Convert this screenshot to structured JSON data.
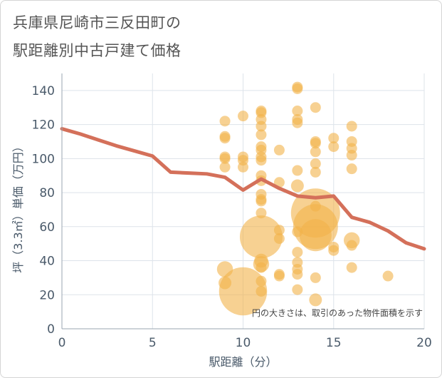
{
  "title_line1": "兵庫県尼崎市三反田町の",
  "title_line2": "駅距離別中古戸建て価格",
  "chart_data": {
    "type": "scatter",
    "xlabel": "駅距離（分）",
    "ylabel": "坪（3.3㎡）単価（万円）",
    "xlim": [
      0,
      20
    ],
    "ylim": [
      0,
      150
    ],
    "xticks": [
      "0",
      "5",
      "10",
      "15",
      "20"
    ],
    "yticks": [
      "0",
      "20",
      "40",
      "60",
      "80",
      "100",
      "120",
      "140"
    ],
    "xtick_values": [
      0,
      5,
      10,
      15,
      20
    ],
    "ytick_values": [
      0,
      20,
      40,
      60,
      80,
      100,
      120,
      140
    ],
    "grid": true,
    "note": "円の大きさは、取引のあった物件面積を示す",
    "colors": {
      "bubble": "#f2b34a",
      "line": "#d4705a",
      "grid": "#dde3ea",
      "axis": "#9aa6b2"
    },
    "scatter": [
      {
        "x": 9,
        "y": 122,
        "s": 1
      },
      {
        "x": 9,
        "y": 113,
        "s": 1
      },
      {
        "x": 9,
        "y": 112,
        "s": 1
      },
      {
        "x": 9,
        "y": 101,
        "s": 1
      },
      {
        "x": 9,
        "y": 100,
        "s": 1
      },
      {
        "x": 9,
        "y": 95,
        "s": 1
      },
      {
        "x": 9,
        "y": 35,
        "s": 1.5
      },
      {
        "x": 9,
        "y": 27,
        "s": 1.2
      },
      {
        "x": 10,
        "y": 125,
        "s": 1
      },
      {
        "x": 10,
        "y": 101,
        "s": 1
      },
      {
        "x": 10,
        "y": 99,
        "s": 1
      },
      {
        "x": 10,
        "y": 95,
        "s": 1
      },
      {
        "x": 10,
        "y": 22,
        "s": 4.5
      },
      {
        "x": 11,
        "y": 128,
        "s": 1
      },
      {
        "x": 11,
        "y": 127,
        "s": 1
      },
      {
        "x": 11,
        "y": 123,
        "s": 1
      },
      {
        "x": 11,
        "y": 119,
        "s": 1
      },
      {
        "x": 11,
        "y": 114,
        "s": 1
      },
      {
        "x": 11,
        "y": 107,
        "s": 1
      },
      {
        "x": 11,
        "y": 105,
        "s": 1
      },
      {
        "x": 11,
        "y": 101,
        "s": 1
      },
      {
        "x": 11,
        "y": 99,
        "s": 1
      },
      {
        "x": 11,
        "y": 90,
        "s": 1
      },
      {
        "x": 11,
        "y": 87,
        "s": 1
      },
      {
        "x": 11,
        "y": 79,
        "s": 1
      },
      {
        "x": 11,
        "y": 76,
        "s": 1
      },
      {
        "x": 11,
        "y": 75,
        "s": 1
      },
      {
        "x": 11,
        "y": 68,
        "s": 1
      },
      {
        "x": 11,
        "y": 54,
        "s": 4
      },
      {
        "x": 11,
        "y": 40,
        "s": 1.3
      },
      {
        "x": 11,
        "y": 38,
        "s": 1.5
      },
      {
        "x": 11,
        "y": 36,
        "s": 1
      },
      {
        "x": 11,
        "y": 28,
        "s": 1
      },
      {
        "x": 11,
        "y": 22,
        "s": 1
      },
      {
        "x": 12,
        "y": 105,
        "s": 1
      },
      {
        "x": 12,
        "y": 86,
        "s": 1
      },
      {
        "x": 12,
        "y": 58,
        "s": 1
      },
      {
        "x": 12,
        "y": 53,
        "s": 1
      },
      {
        "x": 12,
        "y": 32,
        "s": 1
      },
      {
        "x": 12,
        "y": 31,
        "s": 1
      },
      {
        "x": 13,
        "y": 142,
        "s": 1
      },
      {
        "x": 13,
        "y": 141,
        "s": 1
      },
      {
        "x": 13,
        "y": 128,
        "s": 1
      },
      {
        "x": 13,
        "y": 123,
        "s": 1
      },
      {
        "x": 13,
        "y": 121,
        "s": 1
      },
      {
        "x": 13,
        "y": 93,
        "s": 1
      },
      {
        "x": 13,
        "y": 84,
        "s": 1.2
      },
      {
        "x": 13,
        "y": 57,
        "s": 1
      },
      {
        "x": 13,
        "y": 45,
        "s": 1
      },
      {
        "x": 13,
        "y": 39,
        "s": 1
      },
      {
        "x": 13,
        "y": 35,
        "s": 1
      },
      {
        "x": 13,
        "y": 32,
        "s": 1
      },
      {
        "x": 13,
        "y": 23,
        "s": 1
      },
      {
        "x": 14,
        "y": 130,
        "s": 1
      },
      {
        "x": 14,
        "y": 110,
        "s": 1
      },
      {
        "x": 14,
        "y": 109,
        "s": 1
      },
      {
        "x": 14,
        "y": 104,
        "s": 1
      },
      {
        "x": 14,
        "y": 97,
        "s": 1
      },
      {
        "x": 14,
        "y": 92,
        "s": 1
      },
      {
        "x": 14,
        "y": 72,
        "s": 1
      },
      {
        "x": 14,
        "y": 68,
        "s": 4.6
      },
      {
        "x": 14,
        "y": 60,
        "s": 4.2
      },
      {
        "x": 14,
        "y": 55,
        "s": 3
      },
      {
        "x": 14,
        "y": 30,
        "s": 1
      },
      {
        "x": 14,
        "y": 17,
        "s": 1.2
      },
      {
        "x": 15,
        "y": 112,
        "s": 1
      },
      {
        "x": 15,
        "y": 107,
        "s": 1
      },
      {
        "x": 15,
        "y": 48,
        "s": 1
      },
      {
        "x": 15,
        "y": 46,
        "s": 1
      },
      {
        "x": 16,
        "y": 119,
        "s": 1
      },
      {
        "x": 16,
        "y": 110,
        "s": 1
      },
      {
        "x": 16,
        "y": 106,
        "s": 1
      },
      {
        "x": 16,
        "y": 102,
        "s": 1
      },
      {
        "x": 16,
        "y": 94,
        "s": 1
      },
      {
        "x": 16,
        "y": 52,
        "s": 1.5
      },
      {
        "x": 16,
        "y": 49,
        "s": 1
      },
      {
        "x": 16,
        "y": 36,
        "s": 1
      },
      {
        "x": 18,
        "y": 31,
        "s": 1
      }
    ],
    "line": {
      "x": [
        0,
        1,
        2,
        3,
        4,
        5,
        6,
        7,
        8,
        9,
        10,
        11,
        12,
        13,
        14,
        15,
        16,
        17,
        18,
        19,
        20
      ],
      "y": [
        117.5,
        114.5,
        111,
        107.5,
        104.5,
        101.5,
        92,
        91.5,
        91,
        89,
        81.5,
        88,
        82.5,
        78,
        77,
        78,
        65.5,
        62.5,
        57.5,
        50.5,
        47
      ]
    }
  }
}
